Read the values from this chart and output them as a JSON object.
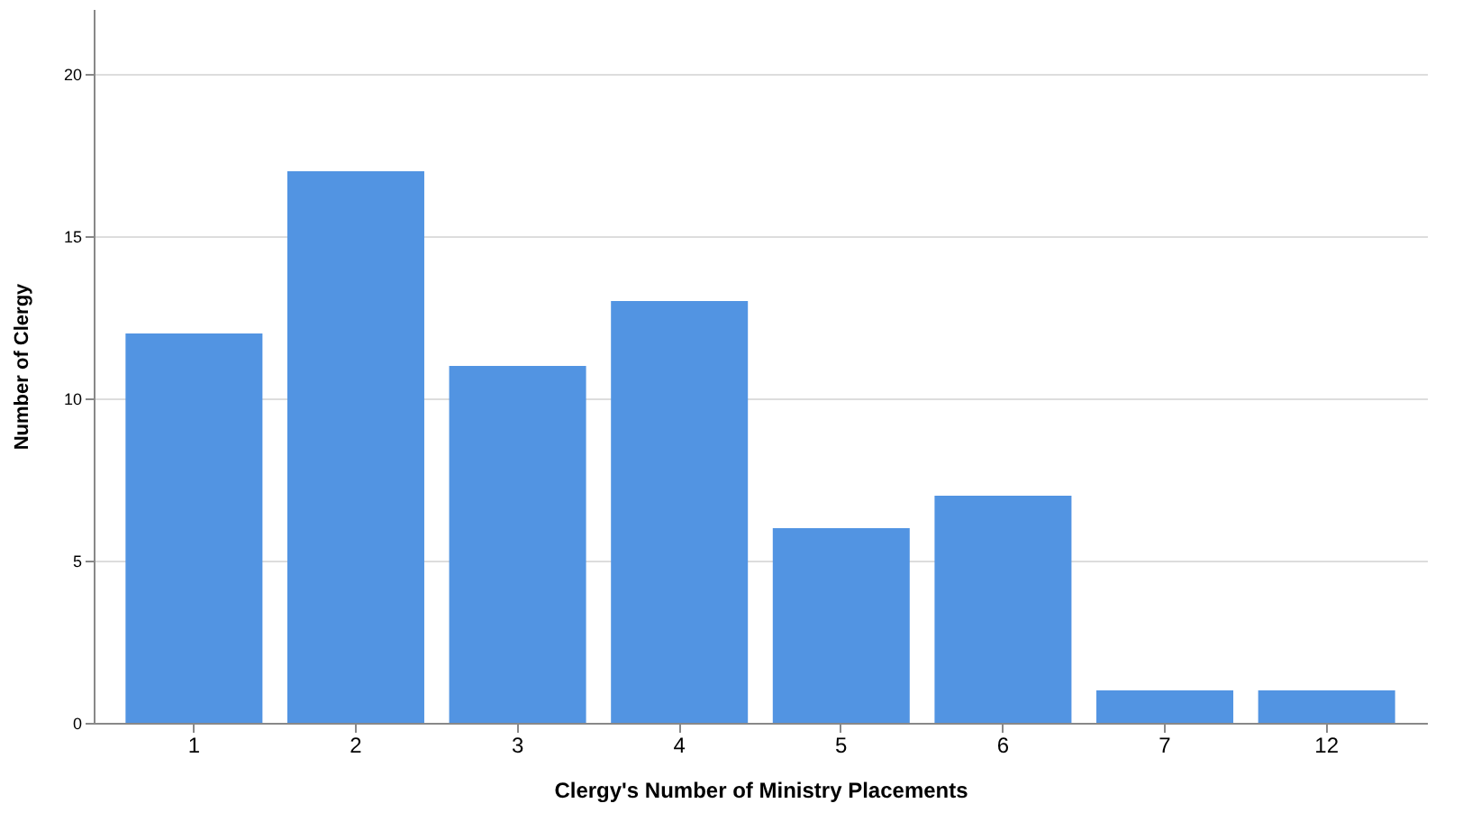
{
  "chart_data": {
    "type": "bar",
    "xlabel": "Clergy's Number of Ministry Placements",
    "ylabel": "Number of Clergy",
    "categories": [
      "1",
      "2",
      "3",
      "4",
      "5",
      "6",
      "7",
      "12"
    ],
    "values": [
      12,
      17,
      11,
      13,
      6,
      7,
      1,
      1
    ],
    "color": "#5294e2",
    "ylim": [
      0,
      22
    ],
    "yticks": [
      0,
      5,
      10,
      15,
      20
    ],
    "grid": "y"
  }
}
